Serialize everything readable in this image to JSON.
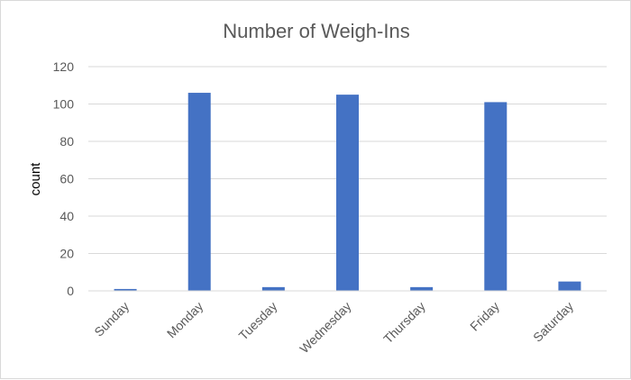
{
  "chart_data": {
    "type": "bar",
    "title": "Number of Weigh-Ins",
    "xlabel": "",
    "ylabel": "count",
    "categories": [
      "Sunday",
      "Monday",
      "Tuesday",
      "Wednesday",
      "Thursday",
      "Friday",
      "Saturday"
    ],
    "values": [
      1,
      106,
      2,
      105,
      2,
      101,
      5
    ],
    "ylim": [
      0,
      120
    ],
    "yticks": [
      "0",
      "20",
      "40",
      "60",
      "80",
      "100",
      "120"
    ],
    "grid": true,
    "legend": "none",
    "bar_color": "#4472C4",
    "grid_color": "#d9d9d9"
  }
}
